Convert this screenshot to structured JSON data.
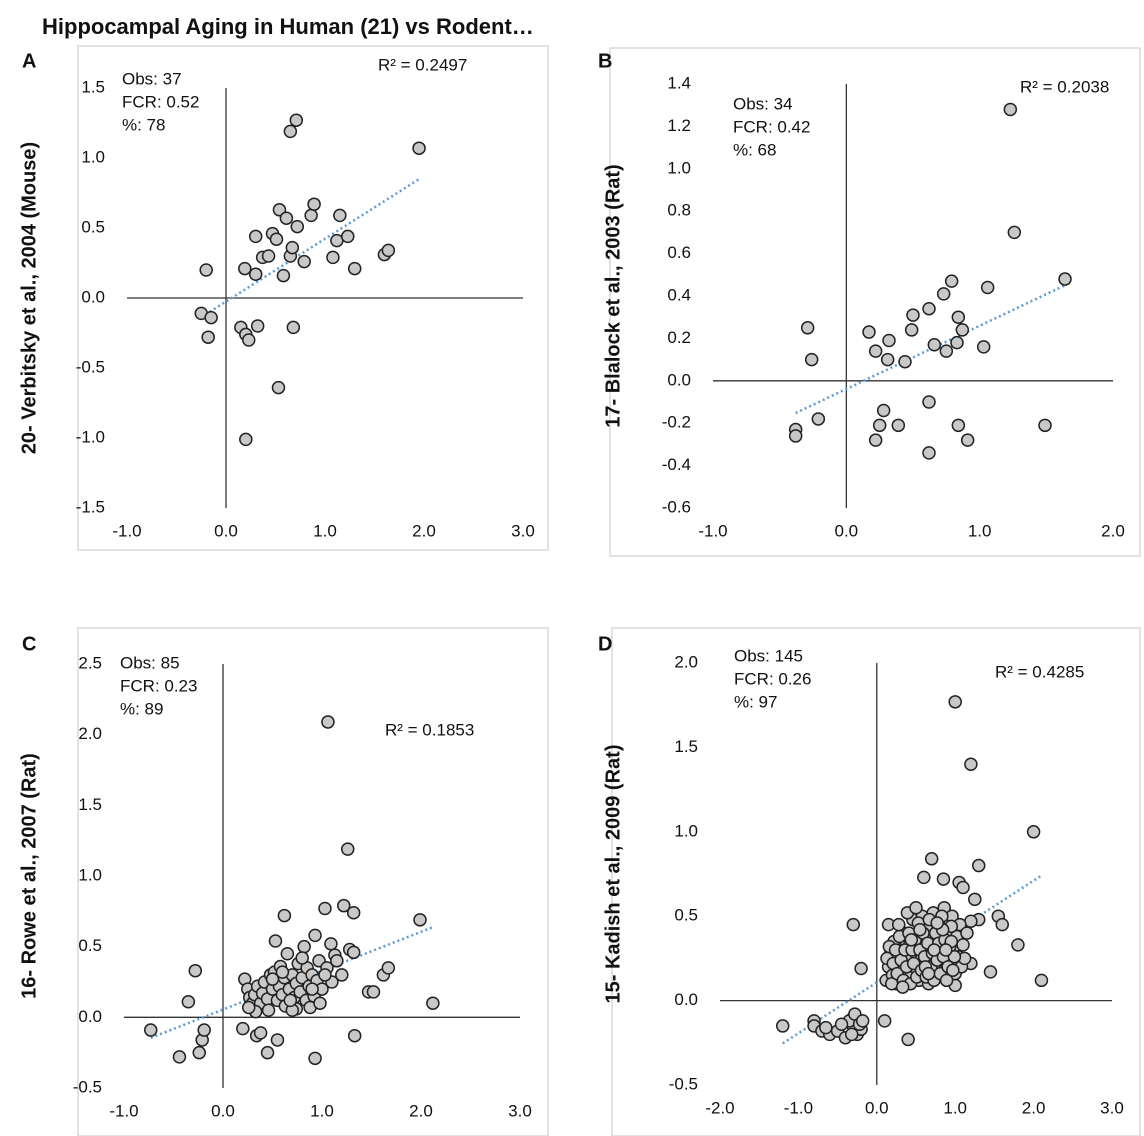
{
  "title": "Hippocampal Aging in Human (21) vs Rodent…",
  "chart_data": [
    {
      "type": "scatter",
      "panel": "A",
      "ylabel": "20- Verbitsky et al., 2004  (Mouse)",
      "annotations": [
        "Obs: 37",
        "FCR: 0.52",
        "%: 78"
      ],
      "r2_label": "R² = 0.2497",
      "color": "#c8c8c8",
      "trendline": true,
      "trend_color": "#5b9bd5",
      "xlim": [
        -1,
        3
      ],
      "ylim": [
        -1.5,
        1.5
      ],
      "xticks": [
        {
          "value": -1,
          "label": "-1.0"
        },
        {
          "value": 0,
          "label": "0.0"
        },
        {
          "value": 1,
          "label": "1.0"
        },
        {
          "value": 2,
          "label": "2.0"
        },
        {
          "value": 3,
          "label": "3.0"
        }
      ],
      "yticks": [
        1.5,
        {
          "value": 1,
          "label": "1.0"
        },
        0.5,
        {
          "value": 0,
          "label": "0.0"
        },
        -0.5,
        {
          "value": -1,
          "label": "-1.0"
        },
        -1.5
      ],
      "x": [
        -0.2,
        -0.25,
        -0.15,
        -0.18,
        0.19,
        0.15,
        0.2,
        0.23,
        0.32,
        0.2,
        0.3,
        0.3,
        0.37,
        0.43,
        0.47,
        0.51,
        0.54,
        0.53,
        0.58,
        0.61,
        0.65,
        0.67,
        0.65,
        0.71,
        0.68,
        0.72,
        0.79,
        0.86,
        0.89,
        1.08,
        1.12,
        1.15,
        1.23,
        1.3,
        1.6,
        1.64,
        1.95
      ],
      "values": [
        0.2,
        -0.11,
        -0.14,
        -0.28,
        0.21,
        -0.21,
        -0.26,
        -0.3,
        -0.2,
        -1.01,
        0.44,
        0.17,
        0.29,
        0.3,
        0.46,
        0.42,
        0.63,
        -0.64,
        0.16,
        0.57,
        0.3,
        0.36,
        1.19,
        1.27,
        -0.21,
        0.51,
        0.26,
        0.59,
        0.67,
        0.29,
        0.41,
        0.59,
        0.44,
        0.21,
        0.31,
        0.34,
        1.07
      ]
    },
    {
      "type": "scatter",
      "panel": "B",
      "ylabel": "17- Blalock et al.,  2003 (Rat)",
      "annotations": [
        "Obs: 34",
        "FCR: 0.42",
        "%: 68"
      ],
      "r2_label": "R² = 0.2038",
      "color": "#c8c8c8",
      "trendline": true,
      "trend_color": "#5b9bd5",
      "xlim": [
        -1,
        2
      ],
      "ylim": [
        -0.6,
        1.4
      ],
      "xticks": [
        {
          "value": -1,
          "label": "-1.0"
        },
        {
          "value": 0,
          "label": "0.0"
        },
        {
          "value": 1,
          "label": "1.0"
        },
        {
          "value": 2,
          "label": "2.0"
        }
      ],
      "yticks": [
        1.4,
        1.2,
        {
          "value": 1,
          "label": "1.0"
        },
        0.8,
        0.6,
        0.4,
        0.2,
        {
          "value": 0,
          "label": "0.0"
        },
        -0.2,
        -0.4,
        -0.6
      ],
      "x": [
        -0.38,
        -0.38,
        -0.29,
        -0.26,
        -0.21,
        0.17,
        0.22,
        0.22,
        0.25,
        0.28,
        0.31,
        0.32,
        0.39,
        0.44,
        0.49,
        0.5,
        0.62,
        0.62,
        0.62,
        0.66,
        0.73,
        0.75,
        0.79,
        0.83,
        0.84,
        0.84,
        0.87,
        0.91,
        1.03,
        1.06,
        1.23,
        1.26,
        1.49,
        1.64
      ],
      "values": [
        -0.23,
        -0.26,
        0.25,
        0.1,
        -0.18,
        0.23,
        0.14,
        -0.28,
        -0.21,
        -0.14,
        0.1,
        0.19,
        -0.21,
        0.09,
        0.24,
        0.31,
        -0.34,
        0.34,
        -0.1,
        0.17,
        0.41,
        0.14,
        0.47,
        0.18,
        0.3,
        -0.21,
        0.24,
        -0.28,
        0.16,
        0.44,
        1.28,
        0.7,
        -0.21,
        0.48
      ]
    },
    {
      "type": "scatter",
      "panel": "C",
      "ylabel": "16- Rowe  et al.,  2007 (Rat)",
      "annotations": [
        "Obs: 85",
        "FCR: 0.23",
        "%: 89"
      ],
      "r2_label": "R² = 0.1853",
      "color": "#c8c8c8",
      "trendline": true,
      "trend_color": "#5b9bd5",
      "xlim": [
        -1,
        3
      ],
      "ylim": [
        -0.5,
        2.5
      ],
      "xticks": [
        {
          "value": -1,
          "label": "-1.0"
        },
        {
          "value": 0,
          "label": "0.0"
        },
        {
          "value": 1,
          "label": "1.0"
        },
        {
          "value": 2,
          "label": "2.0"
        },
        {
          "value": 3,
          "label": "3.0"
        }
      ],
      "yticks": [
        2.5,
        {
          "value": 2,
          "label": "2.0"
        },
        1.5,
        {
          "value": 1,
          "label": "1.0"
        },
        0.5,
        {
          "value": 0,
          "label": "0.0"
        },
        -0.5
      ],
      "x": [
        -0.73,
        -0.44,
        -0.35,
        -0.28,
        -0.24,
        -0.21,
        -0.19,
        0.2,
        0.34,
        0.38,
        0.45,
        0.55,
        0.93,
        1.33,
        1.06,
        1.26,
        1.22,
        1.32,
        1.03,
        1.99,
        2.12,
        0.62,
        0.53,
        1.28,
        1.32,
        1.62,
        1.67,
        1.47,
        1.52,
        1.09,
        1.13,
        0.93,
        0.22,
        0.25,
        0.27,
        0.3,
        0.32,
        0.35,
        0.38,
        0.4,
        0.42,
        0.45,
        0.48,
        0.5,
        0.52,
        0.55,
        0.57,
        0.6,
        0.62,
        0.63,
        0.65,
        0.67,
        0.7,
        0.72,
        0.74,
        0.76,
        0.78,
        0.8,
        0.82,
        0.84,
        0.85,
        0.87,
        0.9,
        0.92,
        0.95,
        0.97,
        1.0,
        0.88,
        0.74,
        0.58,
        0.46,
        1.05,
        1.1,
        1.15,
        1.2,
        0.98,
        0.7,
        0.33,
        0.26,
        0.6,
        0.8,
        0.9,
        1.03,
        0.5,
        0.68
      ],
      "values": [
        -0.09,
        -0.28,
        0.11,
        0.33,
        -0.25,
        -0.16,
        -0.09,
        -0.08,
        -0.13,
        -0.11,
        -0.25,
        -0.16,
        -0.29,
        -0.13,
        2.09,
        1.19,
        0.79,
        0.74,
        0.77,
        0.69,
        0.1,
        0.72,
        0.54,
        0.48,
        0.46,
        0.3,
        0.35,
        0.18,
        0.18,
        0.52,
        0.44,
        0.58,
        0.27,
        0.2,
        0.14,
        0.1,
        0.16,
        0.22,
        0.1,
        0.17,
        0.25,
        0.13,
        0.3,
        0.2,
        0.32,
        0.12,
        0.22,
        0.16,
        0.28,
        0.08,
        0.45,
        0.2,
        0.3,
        0.14,
        0.24,
        0.38,
        0.18,
        0.28,
        0.5,
        0.12,
        0.35,
        0.22,
        0.3,
        0.15,
        0.26,
        0.4,
        0.2,
        0.07,
        0.06,
        0.36,
        0.05,
        0.35,
        0.25,
        0.4,
        0.3,
        0.1,
        0.05,
        0.04,
        0.07,
        0.32,
        0.42,
        0.2,
        0.3,
        0.27,
        0.12
      ]
    },
    {
      "type": "scatter",
      "panel": "D",
      "ylabel": "15- Kadish et al.,  2009 (Rat)",
      "annotations": [
        "Obs: 145",
        "FCR: 0.26",
        "%: 97"
      ],
      "r2_label": "R² = 0.4285",
      "color": "#c8c8c8",
      "trendline": true,
      "trend_color": "#5b9bd5",
      "xlim": [
        -2,
        3
      ],
      "ylim": [
        -0.5,
        2
      ],
      "xticks": [
        {
          "value": -2,
          "label": "-2.0"
        },
        {
          "value": -1,
          "label": "-1.0"
        },
        {
          "value": 0,
          "label": "0.0"
        },
        {
          "value": 1,
          "label": "1.0"
        },
        {
          "value": 2,
          "label": "2.0"
        },
        {
          "value": 3,
          "label": "3.0"
        }
      ],
      "yticks": [
        {
          "value": 2,
          "label": "2.0"
        },
        1.5,
        {
          "value": 1,
          "label": "1.0"
        },
        0.5,
        {
          "value": 0,
          "label": "0.0"
        },
        -0.5
      ],
      "x": [
        -1.2,
        -0.8,
        -0.8,
        -0.7,
        -0.6,
        -0.5,
        -0.4,
        -0.3,
        -0.3,
        -0.25,
        -0.2,
        -0.35,
        -0.28,
        -0.22,
        -0.32,
        -0.18,
        -0.65,
        -0.45,
        -0.3,
        -0.2,
        0.1,
        0.4,
        0.15,
        1.0,
        1.2,
        2.0,
        0.7,
        0.6,
        0.85,
        1.05,
        1.3,
        1.1,
        1.25,
        1.3,
        1.2,
        1.2,
        1.55,
        1.6,
        1.45,
        1.8,
        2.1,
        1.0,
        0.12,
        0.15,
        0.18,
        0.2,
        0.22,
        0.25,
        0.27,
        0.3,
        0.32,
        0.35,
        0.37,
        0.4,
        0.42,
        0.44,
        0.46,
        0.48,
        0.5,
        0.52,
        0.54,
        0.56,
        0.58,
        0.6,
        0.62,
        0.64,
        0.66,
        0.68,
        0.7,
        0.72,
        0.74,
        0.76,
        0.78,
        0.8,
        0.82,
        0.84,
        0.86,
        0.88,
        0.9,
        0.92,
        0.94,
        0.96,
        0.98,
        1.0,
        1.02,
        1.04,
        1.06,
        1.08,
        1.1,
        1.12,
        1.15,
        0.13,
        0.16,
        0.19,
        0.21,
        0.24,
        0.26,
        0.29,
        0.31,
        0.34,
        0.36,
        0.38,
        0.41,
        0.43,
        0.45,
        0.47,
        0.49,
        0.51,
        0.53,
        0.55,
        0.57,
        0.59,
        0.61,
        0.63,
        0.65,
        0.67,
        0.69,
        0.71,
        0.73,
        0.75,
        0.77,
        0.79,
        0.81,
        0.83,
        0.85,
        0.87,
        0.89,
        0.91,
        0.93,
        0.95,
        0.97,
        0.99,
        0.28,
        0.39,
        0.5,
        0.62,
        0.73,
        0.84,
        0.95,
        0.33,
        0.44,
        0.55,
        0.66,
        0.77,
        0.88
      ],
      "values": [
        -0.15,
        -0.12,
        -0.15,
        -0.18,
        -0.2,
        -0.18,
        -0.22,
        -0.1,
        -0.15,
        -0.2,
        -0.17,
        -0.12,
        -0.08,
        -0.14,
        -0.2,
        -0.12,
        -0.16,
        -0.14,
        0.45,
        0.19,
        -0.12,
        -0.23,
        0.45,
        1.77,
        1.4,
        1.0,
        0.84,
        0.73,
        0.72,
        0.7,
        0.8,
        0.67,
        0.6,
        0.48,
        0.47,
        0.22,
        0.5,
        0.45,
        0.17,
        0.33,
        0.12,
        0.09,
        0.12,
        0.2,
        0.28,
        0.15,
        0.35,
        0.1,
        0.22,
        0.3,
        0.18,
        0.4,
        0.12,
        0.25,
        0.33,
        0.15,
        0.48,
        0.2,
        0.28,
        0.38,
        0.12,
        0.24,
        0.5,
        0.18,
        0.32,
        0.42,
        0.1,
        0.26,
        0.36,
        0.52,
        0.2,
        0.3,
        0.14,
        0.44,
        0.24,
        0.34,
        0.55,
        0.18,
        0.28,
        0.4,
        0.22,
        0.5,
        0.3,
        0.16,
        0.38,
        0.26,
        0.45,
        0.2,
        0.33,
        0.25,
        0.4,
        0.25,
        0.32,
        0.1,
        0.22,
        0.3,
        0.16,
        0.38,
        0.24,
        0.12,
        0.3,
        0.2,
        0.4,
        0.1,
        0.3,
        0.22,
        0.36,
        0.14,
        0.46,
        0.3,
        0.18,
        0.4,
        0.26,
        0.14,
        0.34,
        0.48,
        0.2,
        0.28,
        0.12,
        0.4,
        0.24,
        0.34,
        0.16,
        0.5,
        0.26,
        0.36,
        0.12,
        0.2,
        0.32,
        0.44,
        0.18,
        0.26,
        0.45,
        0.52,
        0.55,
        0.2,
        0.3,
        0.42,
        0.35,
        0.08,
        0.36,
        0.42,
        0.16,
        0.46,
        0.3
      ]
    }
  ]
}
